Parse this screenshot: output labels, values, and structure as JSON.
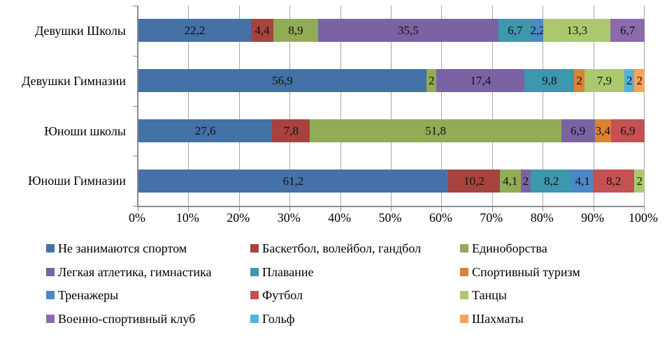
{
  "chart_data": {
    "type": "bar",
    "subtype": "horizontal-stacked-percent",
    "title": "",
    "xlabel": "",
    "ylabel": "",
    "x_axis": {
      "ticks": [
        "0%",
        "10%",
        "20%",
        "30%",
        "40%",
        "50%",
        "60%",
        "70%",
        "80%",
        "90%",
        "100%"
      ],
      "min": 0,
      "max": 100,
      "grid": true
    },
    "categories": [
      "Девушки Школы",
      "Девушки Гимназии",
      "Юноши школы",
      "Юноши Гимназии"
    ],
    "bars": [
      {
        "category": "Девушки Школы",
        "segments": [
          {
            "series": "Не занимаются спортом",
            "value": 22.2,
            "label": "22,2"
          },
          {
            "series": "Баскетбол, волейбол, гандбол",
            "value": 4.4,
            "label": "4,4"
          },
          {
            "series": "Единоборства",
            "value": 8.9,
            "label": "8,9"
          },
          {
            "series": "Легкая атлетика, гимнастика",
            "value": 35.5,
            "label": "35,5"
          },
          {
            "series": "Плавание",
            "value": 6.7,
            "label": "6,7"
          },
          {
            "series": "Тренажеры",
            "value": 2.2,
            "label": "2,2"
          },
          {
            "series": "Танцы",
            "value": 13.3,
            "label": "13,3"
          },
          {
            "series": "Военно-спортивный клуб",
            "value": 6.7,
            "label": "6,7"
          }
        ]
      },
      {
        "category": "Девушки Гимназии",
        "segments": [
          {
            "series": "Не занимаются спортом",
            "value": 56.9,
            "label": "56,9"
          },
          {
            "series": "Единоборства",
            "value": 2,
            "label": "2"
          },
          {
            "series": "Легкая атлетика, гимнастика",
            "value": 17.4,
            "label": "17,4"
          },
          {
            "series": "Плавание",
            "value": 9.8,
            "label": "9,8"
          },
          {
            "series": "Спортивный туризм",
            "value": 2,
            "label": "2"
          },
          {
            "series": "Танцы",
            "value": 7.9,
            "label": "7,9"
          },
          {
            "series": "Гольф",
            "value": 2,
            "label": "2"
          },
          {
            "series": "Шахматы",
            "value": 2,
            "label": "2"
          }
        ]
      },
      {
        "category": "Юноши школы",
        "segments": [
          {
            "series": "Не занимаются спортом",
            "value": 27.6,
            "label": "27,6"
          },
          {
            "series": "Баскетбол, волейбол, гандбол",
            "value": 7.8,
            "label": "7,8"
          },
          {
            "series": "Единоборства",
            "value": 51.8,
            "label": "51,8"
          },
          {
            "series": "Легкая атлетика, гимнастика",
            "value": 6.9,
            "label": "6,9"
          },
          {
            "series": "Спортивный туризм",
            "value": 3.4,
            "label": "3,4"
          },
          {
            "series": "Футбол",
            "value": 6.9,
            "label": "6,9"
          }
        ]
      },
      {
        "category": "Юноши Гимназии",
        "segments": [
          {
            "series": "Не занимаются спортом",
            "value": 61.2,
            "label": "61,2"
          },
          {
            "series": "Баскетбол, волейбол, гандбол",
            "value": 10.2,
            "label": "10,2"
          },
          {
            "series": "Единоборства",
            "value": 4.1,
            "label": "4,1"
          },
          {
            "series": "Легкая атлетика, гимнастика",
            "value": 2,
            "label": "2"
          },
          {
            "series": "Плавание",
            "value": 8.2,
            "label": "8,2"
          },
          {
            "series": "Тренажеры",
            "value": 4.1,
            "label": "4,1"
          },
          {
            "series": "Футбол",
            "value": 8.2,
            "label": "8,2"
          },
          {
            "series": "Танцы",
            "value": 2,
            "label": "2"
          }
        ]
      }
    ],
    "legend_position": "bottom"
  },
  "legend": {
    "items": [
      {
        "label": "Не занимаются спортом",
        "color": "#4471A6"
      },
      {
        "label": "Баскетбол, волейбол, гандбол",
        "color": "#A7433E"
      },
      {
        "label": "Единоборства",
        "color": "#92AB55"
      },
      {
        "label": "Легкая атлетика, гимнастика",
        "color": "#7A63A3"
      },
      {
        "label": "Плавание",
        "color": "#3D97AD"
      },
      {
        "label": "Спортивный туризм",
        "color": "#DC8233"
      },
      {
        "label": "Тренажеры",
        "color": "#4C87C7"
      },
      {
        "label": "Футбол",
        "color": "#C55153"
      },
      {
        "label": "Танцы",
        "color": "#ABC96C"
      },
      {
        "label": "Военно-спортивный клуб",
        "color": "#8B6BAD"
      },
      {
        "label": "Гольф",
        "color": "#52B3D6"
      },
      {
        "label": "Шахматы",
        "color": "#F9A25C"
      }
    ]
  }
}
